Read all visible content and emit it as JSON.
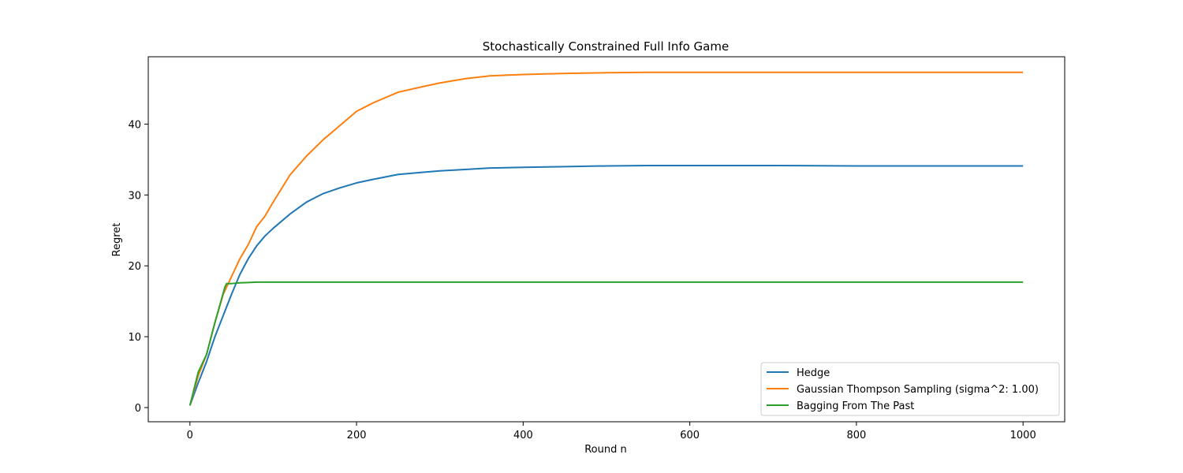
{
  "chart_data": {
    "type": "line",
    "title": "Stochastically Constrained Full Info Game",
    "xlabel": "Round n",
    "ylabel": "Regret",
    "xlim": [
      -50,
      1050
    ],
    "ylim": [
      -2,
      49.5
    ],
    "xticks": [
      0,
      200,
      400,
      600,
      800,
      1000
    ],
    "yticks": [
      0,
      10,
      20,
      30,
      40
    ],
    "grid": false,
    "legend_position": "lower-right",
    "series": [
      {
        "name": "Hedge",
        "color": "#1f77b4",
        "x": [
          0,
          10,
          20,
          30,
          40,
          50,
          60,
          70,
          80,
          90,
          100,
          120,
          140,
          160,
          180,
          200,
          220,
          250,
          280,
          300,
          330,
          360,
          400,
          450,
          500,
          550,
          600,
          650,
          700,
          800,
          900,
          1000
        ],
        "y": [
          0.3,
          3.5,
          6.5,
          10.0,
          13.0,
          16.0,
          18.8,
          21.0,
          22.8,
          24.2,
          25.3,
          27.3,
          29.0,
          30.2,
          31.0,
          31.7,
          32.2,
          32.9,
          33.2,
          33.4,
          33.6,
          33.8,
          33.9,
          34.0,
          34.1,
          34.15,
          34.15,
          34.15,
          34.15,
          34.1,
          34.1,
          34.1
        ]
      },
      {
        "name": "Gaussian Thompson Sampling (sigma^2: 1.00)",
        "color": "#ff7f0e",
        "x": [
          0,
          10,
          20,
          30,
          40,
          50,
          60,
          70,
          80,
          90,
          100,
          120,
          140,
          160,
          180,
          200,
          220,
          250,
          280,
          300,
          330,
          360,
          400,
          450,
          500,
          550,
          600,
          700,
          800,
          900,
          1000
        ],
        "y": [
          0.3,
          4.5,
          7.5,
          12.0,
          16.0,
          18.5,
          21.0,
          23.0,
          25.5,
          27.0,
          29.0,
          32.8,
          35.5,
          37.8,
          39.8,
          41.8,
          43.0,
          44.5,
          45.3,
          45.8,
          46.4,
          46.8,
          47.0,
          47.15,
          47.25,
          47.3,
          47.3,
          47.3,
          47.3,
          47.3,
          47.3
        ]
      },
      {
        "name": "Bagging From The Past",
        "color": "#2ca02c",
        "x": [
          0,
          10,
          20,
          30,
          42,
          44,
          50,
          60,
          70,
          80,
          90,
          100,
          150,
          200,
          300,
          400,
          500,
          600,
          700,
          800,
          900,
          1000
        ],
        "y": [
          0.3,
          5.0,
          7.5,
          12.0,
          17.0,
          17.5,
          17.5,
          17.6,
          17.65,
          17.7,
          17.7,
          17.7,
          17.7,
          17.7,
          17.7,
          17.7,
          17.7,
          17.7,
          17.7,
          17.7,
          17.7,
          17.7
        ]
      }
    ]
  }
}
